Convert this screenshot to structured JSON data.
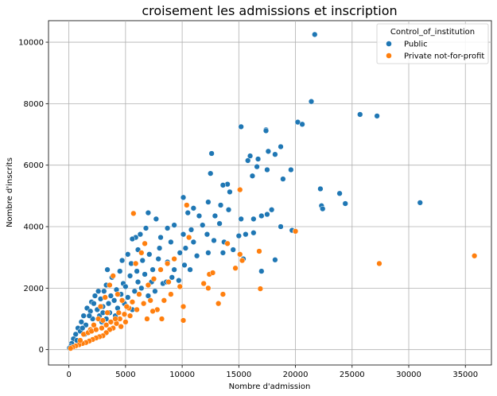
{
  "chart_data": {
    "type": "scatter",
    "title": "croisement les admissions et inscription",
    "xlabel": "Nombre d'admission",
    "ylabel": "Nombre d'inscrits",
    "xlim": [
      -1800,
      37300
    ],
    "ylim": [
      -500,
      10700
    ],
    "xticks": [
      0,
      5000,
      10000,
      15000,
      20000,
      25000,
      30000,
      35000
    ],
    "yticks": [
      0,
      2000,
      4000,
      6000,
      8000,
      10000
    ],
    "grid": true,
    "legend_title": "Control_of_institution",
    "legend_position": "top-right",
    "series": [
      {
        "name": "Public",
        "color": "#1f77b4",
        "points": [
          [
            21700,
            10250
          ],
          [
            21400,
            8070
          ],
          [
            25700,
            7650
          ],
          [
            27200,
            7600
          ],
          [
            20200,
            7400
          ],
          [
            20600,
            7330
          ],
          [
            15200,
            7250
          ],
          [
            17400,
            7150
          ],
          [
            17400,
            7120
          ],
          [
            17600,
            6450
          ],
          [
            18700,
            6600
          ],
          [
            18200,
            6350
          ],
          [
            12600,
            6380
          ],
          [
            15800,
            6150
          ],
          [
            16000,
            6300
          ],
          [
            16700,
            6200
          ],
          [
            19600,
            5850
          ],
          [
            17500,
            5850
          ],
          [
            16600,
            5950
          ],
          [
            16200,
            5650
          ],
          [
            12500,
            5730
          ],
          [
            14200,
            5130
          ],
          [
            18900,
            5550
          ],
          [
            14000,
            5380
          ],
          [
            13600,
            5350
          ],
          [
            22200,
            5230
          ],
          [
            23900,
            5080
          ],
          [
            24400,
            4750
          ],
          [
            22300,
            4680
          ],
          [
            22400,
            4580
          ],
          [
            31000,
            4780
          ],
          [
            10100,
            4950
          ],
          [
            11000,
            4600
          ],
          [
            10500,
            4450
          ],
          [
            12300,
            4800
          ],
          [
            13400,
            4700
          ],
          [
            14100,
            4550
          ],
          [
            15200,
            4250
          ],
          [
            16300,
            4250
          ],
          [
            17000,
            4350
          ],
          [
            17500,
            4400
          ],
          [
            17900,
            4550
          ],
          [
            18700,
            4000
          ],
          [
            19700,
            3880
          ],
          [
            20000,
            3850
          ],
          [
            18200,
            2920
          ],
          [
            17000,
            2550
          ],
          [
            11500,
            4350
          ],
          [
            13300,
            4100
          ],
          [
            12200,
            3750
          ],
          [
            12800,
            3550
          ],
          [
            13700,
            3500
          ],
          [
            15000,
            3700
          ],
          [
            15600,
            3750
          ],
          [
            16300,
            3800
          ],
          [
            14500,
            3250
          ],
          [
            13600,
            3150
          ],
          [
            15400,
            2950
          ],
          [
            12300,
            3150
          ],
          [
            11000,
            3500
          ],
          [
            10300,
            3300
          ],
          [
            9800,
            3150
          ],
          [
            11300,
            3050
          ],
          [
            9300,
            4050
          ],
          [
            8700,
            3950
          ],
          [
            8100,
            3650
          ],
          [
            7700,
            4250
          ],
          [
            7000,
            4450
          ],
          [
            6800,
            3950
          ],
          [
            6300,
            3750
          ],
          [
            5900,
            3650
          ],
          [
            5600,
            3600
          ],
          [
            6100,
            3250
          ],
          [
            7100,
            3100
          ],
          [
            7900,
            2950
          ],
          [
            8700,
            2850
          ],
          [
            9300,
            2600
          ],
          [
            10200,
            2750
          ],
          [
            10700,
            2600
          ],
          [
            9100,
            2350
          ],
          [
            9700,
            2250
          ],
          [
            8300,
            2150
          ],
          [
            7300,
            2200
          ],
          [
            6700,
            2450
          ],
          [
            6000,
            2550
          ],
          [
            5400,
            2400
          ],
          [
            4800,
            2150
          ],
          [
            4500,
            2550
          ],
          [
            3400,
            2600
          ],
          [
            3800,
            2350
          ],
          [
            3300,
            2100
          ],
          [
            5000,
            2050
          ],
          [
            4200,
            1950
          ],
          [
            3700,
            1750
          ],
          [
            3100,
            1900
          ],
          [
            2800,
            1650
          ],
          [
            2300,
            1750
          ],
          [
            2000,
            1550
          ],
          [
            1600,
            1350
          ],
          [
            1900,
            1250
          ],
          [
            1300,
            1100
          ],
          [
            1100,
            900
          ],
          [
            800,
            700
          ],
          [
            600,
            500
          ],
          [
            400,
            350
          ],
          [
            250,
            200
          ],
          [
            150,
            100
          ],
          [
            50,
            50
          ],
          [
            3500,
            1500
          ],
          [
            4000,
            1600
          ],
          [
            4600,
            1800
          ],
          [
            5200,
            1700
          ],
          [
            5800,
            1900
          ],
          [
            6400,
            2000
          ],
          [
            7000,
            1750
          ],
          [
            7600,
            1900
          ],
          [
            2500,
            1300
          ],
          [
            3000,
            1400
          ],
          [
            3600,
            1200
          ],
          [
            4300,
            1350
          ],
          [
            2100,
            1000
          ],
          [
            2700,
            1100
          ],
          [
            1500,
            800
          ],
          [
            1000,
            600
          ],
          [
            5500,
            2800
          ],
          [
            6500,
            2900
          ],
          [
            8000,
            3300
          ],
          [
            9000,
            3500
          ],
          [
            10100,
            3750
          ],
          [
            10800,
            3900
          ],
          [
            11800,
            4050
          ],
          [
            12900,
            4350
          ],
          [
            4700,
            2900
          ],
          [
            5200,
            3100
          ],
          [
            6100,
            2200
          ],
          [
            7400,
            2600
          ],
          [
            8600,
            2200
          ],
          [
            2600,
            1900
          ],
          [
            3000,
            1200
          ],
          [
            4100,
            1100
          ],
          [
            4900,
            1500
          ],
          [
            5600,
            1300
          ],
          [
            1200,
            700
          ],
          [
            1800,
            1100
          ],
          [
            2200,
            1500
          ],
          [
            2900,
            900
          ],
          [
            3300,
            1000
          ],
          [
            700,
            300
          ],
          [
            1400,
            500
          ]
        ]
      },
      {
        "name": "Private not-for-profit",
        "color": "#ff7f0e",
        "points": [
          [
            35800,
            3050
          ],
          [
            27400,
            2800
          ],
          [
            20000,
            3850
          ],
          [
            15100,
            5200
          ],
          [
            16800,
            3200
          ],
          [
            15300,
            2900
          ],
          [
            16900,
            1980
          ],
          [
            15100,
            3100
          ],
          [
            14000,
            3450
          ],
          [
            13600,
            1800
          ],
          [
            13200,
            1500
          ],
          [
            14700,
            2650
          ],
          [
            12400,
            2450
          ],
          [
            11900,
            2150
          ],
          [
            12700,
            2500
          ],
          [
            12300,
            2000
          ],
          [
            10400,
            4700
          ],
          [
            10600,
            3650
          ],
          [
            10100,
            1400
          ],
          [
            10100,
            950
          ],
          [
            9800,
            2050
          ],
          [
            9300,
            2950
          ],
          [
            8800,
            2200
          ],
          [
            8400,
            1600
          ],
          [
            8200,
            1000
          ],
          [
            7800,
            1300
          ],
          [
            7400,
            1250
          ],
          [
            7200,
            1600
          ],
          [
            6900,
            1000
          ],
          [
            6400,
            3150
          ],
          [
            6700,
            3450
          ],
          [
            5700,
            4430
          ],
          [
            5900,
            2800
          ],
          [
            6200,
            1800
          ],
          [
            5600,
            1550
          ],
          [
            5300,
            1350
          ],
          [
            4900,
            1150
          ],
          [
            4500,
            1000
          ],
          [
            4200,
            850
          ],
          [
            3900,
            700
          ],
          [
            3600,
            650
          ],
          [
            3300,
            550
          ],
          [
            3000,
            450
          ],
          [
            2700,
            420
          ],
          [
            2400,
            380
          ],
          [
            2100,
            330
          ],
          [
            1800,
            280
          ],
          [
            1500,
            230
          ],
          [
            1200,
            200
          ],
          [
            900,
            160
          ],
          [
            600,
            120
          ],
          [
            350,
            80
          ],
          [
            150,
            40
          ],
          [
            3900,
            2400
          ],
          [
            3600,
            2100
          ],
          [
            4300,
            1800
          ],
          [
            4700,
            1600
          ],
          [
            5100,
            1400
          ],
          [
            2600,
            1000
          ],
          [
            2200,
            800
          ],
          [
            1900,
            650
          ],
          [
            3000,
            950
          ],
          [
            3400,
            1200
          ],
          [
            2800,
            1400
          ],
          [
            3200,
            1700
          ],
          [
            4600,
            750
          ],
          [
            5000,
            900
          ],
          [
            5400,
            1100
          ],
          [
            6000,
            1300
          ],
          [
            6600,
            1500
          ],
          [
            7000,
            2100
          ],
          [
            7500,
            2300
          ],
          [
            8100,
            2600
          ],
          [
            8700,
            2800
          ],
          [
            9000,
            1800
          ],
          [
            1000,
            300
          ],
          [
            1300,
            500
          ],
          [
            1700,
            550
          ],
          [
            2000,
            600
          ],
          [
            2400,
            650
          ],
          [
            2900,
            700
          ],
          [
            3300,
            800
          ],
          [
            3700,
            900
          ],
          [
            4100,
            1000
          ],
          [
            4400,
            1200
          ]
        ]
      }
    ]
  }
}
